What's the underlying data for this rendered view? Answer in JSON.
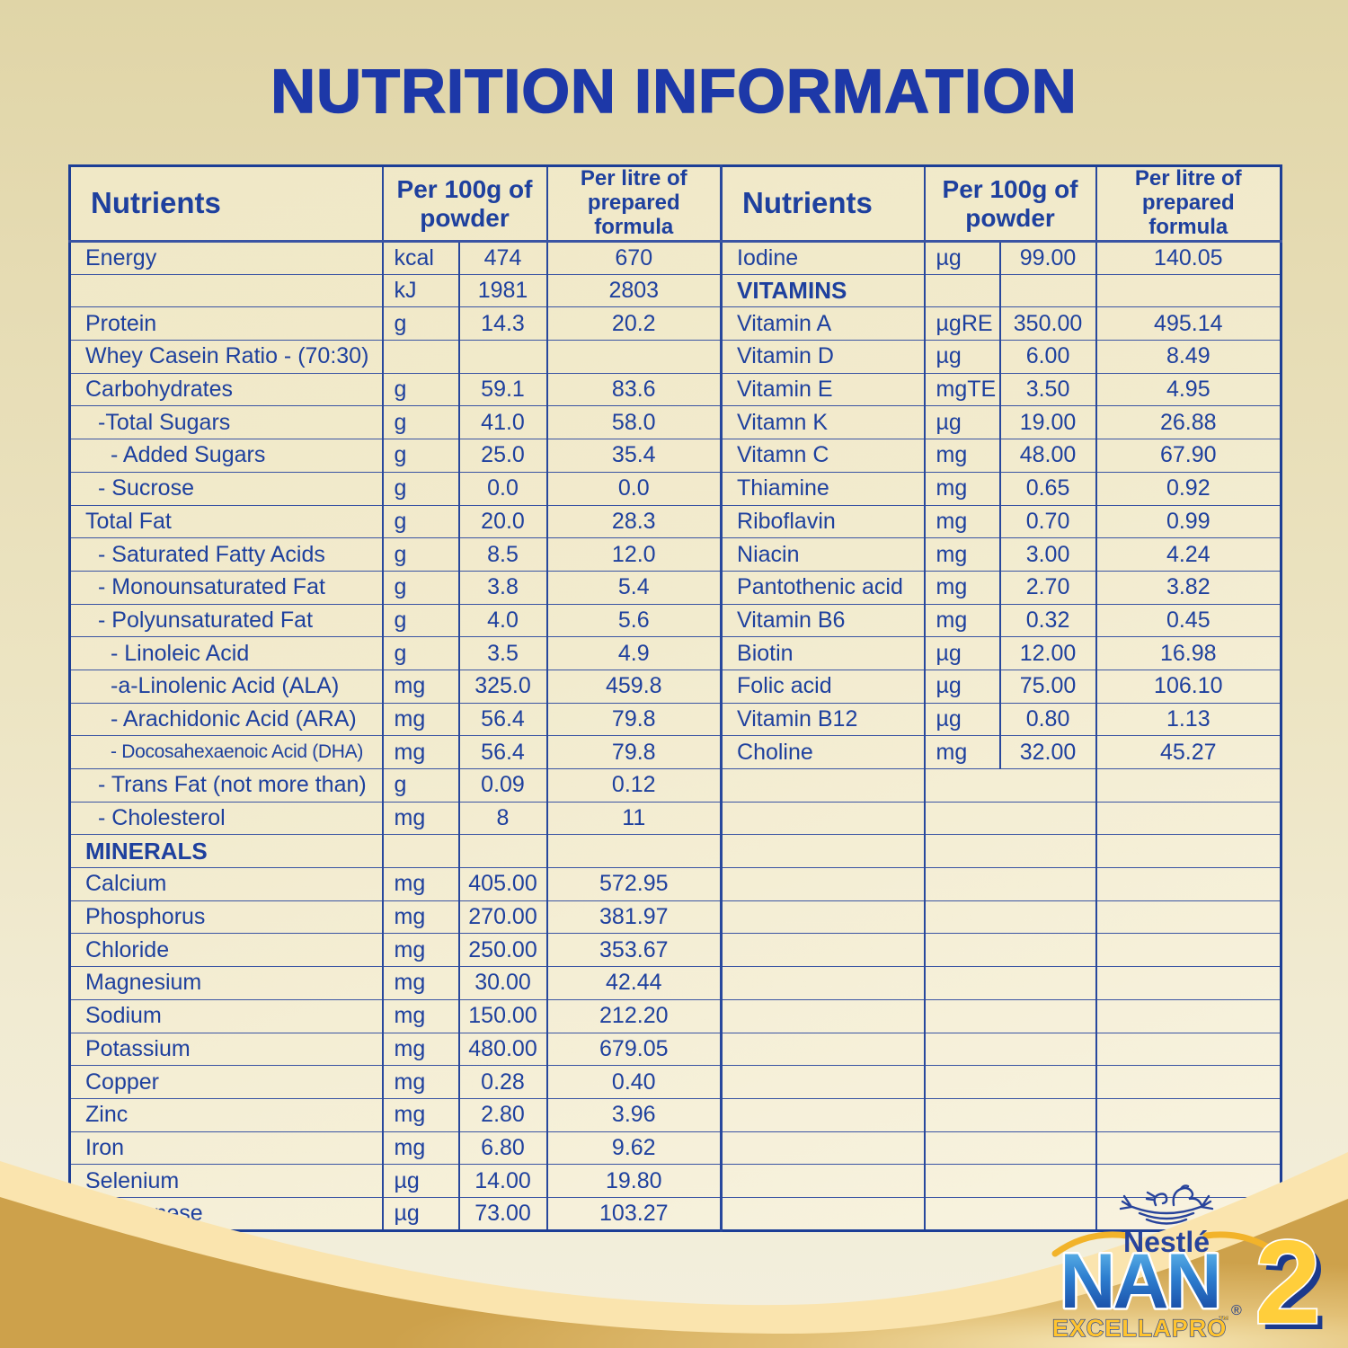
{
  "title": "NUTRITION INFORMATION",
  "colors": {
    "text_blue": "#1e409e",
    "title_blue": "#1d38a8",
    "table_border": "#1c3e96",
    "gold_wave": "#cda14c",
    "light_gold_band": "#fae4ae",
    "brand_yellow": "#ffc937",
    "nan_blue": "#1b3d99"
  },
  "table": {
    "headers": {
      "nutrients": "Nutrients",
      "per_100g": "Per 100g of powder",
      "per_litre": "Per litre of prepared formula"
    },
    "left_rows": [
      {
        "label": "Energy",
        "indent": 0,
        "unit": "kcal",
        "v100": "474",
        "vl": "670"
      },
      {
        "label": "",
        "indent": 0,
        "unit": "kJ",
        "v100": "1981",
        "vl": "2803"
      },
      {
        "label": "Protein",
        "indent": 0,
        "unit": "g",
        "v100": "14.3",
        "vl": "20.2"
      },
      {
        "label": "Whey Casein Ratio - (70:30)",
        "indent": 0,
        "unit": "",
        "v100": "",
        "vl": ""
      },
      {
        "label": "Carbohydrates",
        "indent": 0,
        "unit": "g",
        "v100": "59.1",
        "vl": "83.6"
      },
      {
        "label": "-Total Sugars",
        "indent": 1,
        "unit": "g",
        "v100": "41.0",
        "vl": "58.0"
      },
      {
        "label": "- Added Sugars",
        "indent": 2,
        "unit": "g",
        "v100": "25.0",
        "vl": "35.4"
      },
      {
        "label": "- Sucrose",
        "indent": 1,
        "unit": "g",
        "v100": "0.0",
        "vl": "0.0"
      },
      {
        "label": "Total Fat",
        "indent": 0,
        "unit": "g",
        "v100": "20.0",
        "vl": "28.3"
      },
      {
        "label": "- Saturated Fatty Acids",
        "indent": 1,
        "unit": "g",
        "v100": "8.5",
        "vl": "12.0"
      },
      {
        "label": "- Monounsaturated Fat",
        "indent": 1,
        "unit": "g",
        "v100": "3.8",
        "vl": "5.4"
      },
      {
        "label": "- Polyunsaturated Fat",
        "indent": 1,
        "unit": "g",
        "v100": "4.0",
        "vl": "5.6"
      },
      {
        "label": "- Linoleic Acid",
        "indent": 2,
        "unit": "g",
        "v100": "3.5",
        "vl": "4.9"
      },
      {
        "label": "-a-Linolenic Acid (ALA)",
        "indent": 2,
        "unit": "mg",
        "v100": "325.0",
        "vl": "459.8"
      },
      {
        "label": "- Arachidonic Acid (ARA)",
        "indent": 2,
        "unit": "mg",
        "v100": "56.4",
        "vl": "79.8"
      },
      {
        "label": "- Docosahexaenoic Acid (DHA)",
        "indent": 2,
        "small": true,
        "unit": "mg",
        "v100": "56.4",
        "vl": "79.8"
      },
      {
        "label": "- Trans Fat (not more than)",
        "indent": 1,
        "unit": "g",
        "v100": "0.09",
        "vl": "0.12"
      },
      {
        "label": "- Cholesterol",
        "indent": 1,
        "unit": "mg",
        "v100": "8",
        "vl": "11"
      },
      {
        "label": "MINERALS",
        "indent": 0,
        "bold": true,
        "unit": "",
        "v100": "",
        "vl": ""
      },
      {
        "label": "Calcium",
        "indent": 0,
        "unit": "mg",
        "v100": "405.00",
        "vl": "572.95"
      },
      {
        "label": "Phosphorus",
        "indent": 0,
        "unit": "mg",
        "v100": "270.00",
        "vl": "381.97"
      },
      {
        "label": "Chloride",
        "indent": 0,
        "unit": "mg",
        "v100": "250.00",
        "vl": "353.67"
      },
      {
        "label": "Magnesium",
        "indent": 0,
        "unit": "mg",
        "v100": "30.00",
        "vl": "42.44"
      },
      {
        "label": "Sodium",
        "indent": 0,
        "unit": "mg",
        "v100": "150.00",
        "vl": "212.20"
      },
      {
        "label": "Potassium",
        "indent": 0,
        "unit": "mg",
        "v100": "480.00",
        "vl": "679.05"
      },
      {
        "label": "Copper",
        "indent": 0,
        "unit": "mg",
        "v100": "0.28",
        "vl": "0.40"
      },
      {
        "label": "Zinc",
        "indent": 0,
        "unit": "mg",
        "v100": "2.80",
        "vl": "3.96"
      },
      {
        "label": "Iron",
        "indent": 0,
        "unit": "mg",
        "v100": "6.80",
        "vl": "9.62"
      },
      {
        "label": "Selenium",
        "indent": 0,
        "unit": "µg",
        "v100": "14.00",
        "vl": "19.80"
      },
      {
        "label": "Manganese",
        "indent": 0,
        "unit": "µg",
        "v100": "73.00",
        "vl": "103.27"
      }
    ],
    "right_rows": [
      {
        "label": "Iodine",
        "indent": 0,
        "unit": "µg",
        "v100": "99.00",
        "vl": "140.05"
      },
      {
        "label": "VITAMINS",
        "indent": 0,
        "bold": true,
        "unit": "",
        "v100": "",
        "vl": ""
      },
      {
        "label": "Vitamin A",
        "indent": 0,
        "unit": "µgRE",
        "v100": "350.00",
        "vl": "495.14"
      },
      {
        "label": "Vitamin D",
        "indent": 0,
        "unit": "µg",
        "v100": "6.00",
        "vl": "8.49"
      },
      {
        "label": "Vitamin E",
        "indent": 0,
        "unit": "mgTE",
        "v100": "3.50",
        "vl": "4.95"
      },
      {
        "label": "Vitamn K",
        "indent": 0,
        "unit": "µg",
        "v100": "19.00",
        "vl": "26.88"
      },
      {
        "label": "Vitamn C",
        "indent": 0,
        "unit": "mg",
        "v100": "48.00",
        "vl": "67.90"
      },
      {
        "label": "Thiamine",
        "indent": 0,
        "unit": "mg",
        "v100": "0.65",
        "vl": "0.92"
      },
      {
        "label": "Riboflavin",
        "indent": 0,
        "unit": "mg",
        "v100": "0.70",
        "vl": "0.99"
      },
      {
        "label": "Niacin",
        "indent": 0,
        "unit": "mg",
        "v100": "3.00",
        "vl": "4.24"
      },
      {
        "label": "Pantothenic acid",
        "indent": 0,
        "unit": "mg",
        "v100": "2.70",
        "vl": "3.82"
      },
      {
        "label": "Vitamin B6",
        "indent": 0,
        "unit": "mg",
        "v100": "0.32",
        "vl": "0.45"
      },
      {
        "label": "Biotin",
        "indent": 0,
        "unit": "µg",
        "v100": "12.00",
        "vl": "16.98"
      },
      {
        "label": "Folic acid",
        "indent": 0,
        "unit": "µg",
        "v100": "75.00",
        "vl": "106.10"
      },
      {
        "label": "Vitamin B12",
        "indent": 0,
        "unit": "µg",
        "v100": "0.80",
        "vl": "1.13"
      },
      {
        "label": "Choline",
        "indent": 0,
        "unit": "mg",
        "v100": "32.00",
        "vl": "45.27"
      },
      {
        "merged": true
      },
      {
        "merged": true
      },
      {
        "merged": true
      },
      {
        "merged": true
      },
      {
        "merged": true
      },
      {
        "merged": true
      },
      {
        "merged": true
      },
      {
        "merged": true
      },
      {
        "merged": true
      },
      {
        "merged": true
      },
      {
        "merged": true
      },
      {
        "merged": true
      },
      {
        "merged": true
      },
      {
        "merged": true
      }
    ]
  },
  "logo": {
    "nestle": "Nestlé",
    "brand": "NAN",
    "reg": "®",
    "sub_brand": "EXCELLAPRO",
    "tm": "™",
    "stage": "2"
  }
}
